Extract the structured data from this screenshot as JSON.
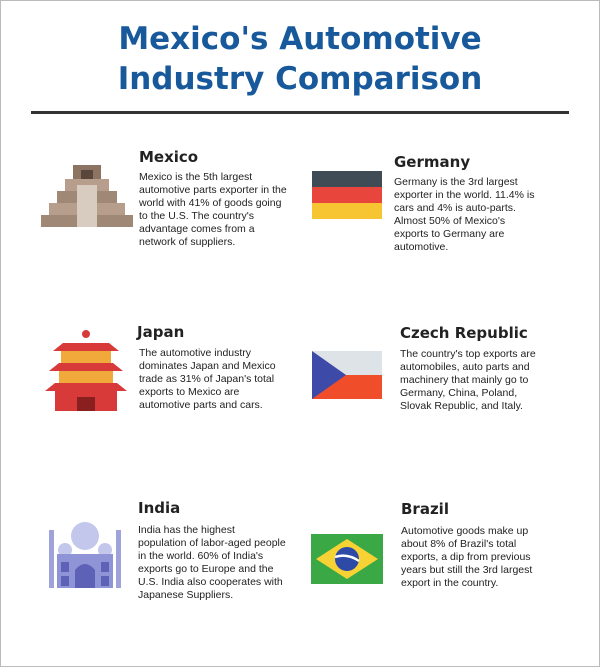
{
  "header": {
    "title": "Mexico's Automotive Industry Comparison"
  },
  "items": [
    {
      "name": "Mexico",
      "text": "Mexico is the 5th largest automotive parts exporter in the world with 41% of goods going to the U.S. The country's advantage comes from a network of suppliers."
    },
    {
      "name": "Germany",
      "text": "Germany is the 3rd largest exporter in the world. 11.4% is cars and 4% is auto-parts. Almost 50% of Mexico's exports to Germany are automotive."
    },
    {
      "name": "Japan",
      "text": "The automotive industry dominates Japan and Mexico trade as 31% of Japan's total exports to Mexico are automotive parts and cars."
    },
    {
      "name": "Czech Republic",
      "text": "The country's top exports are automobiles, auto parts and machinery that mainly go to Germany, China, Poland, Slovak Republic, and Italy."
    },
    {
      "name": "India",
      "text": "India has the highest population of labor-aged people in the world. 60% of India's exports go to Europe and the U.S. India also cooperates with Japanese Suppliers."
    },
    {
      "name": "Brazil",
      "text": "Automotive goods make up about 8% of Brazil's total exports, a dip from previous years but still the 3rd largest export in the country."
    }
  ]
}
